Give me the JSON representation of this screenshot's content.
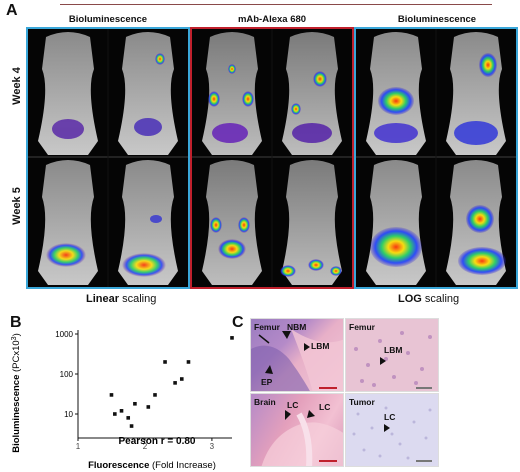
{
  "panel_a": {
    "letter": "A",
    "headers": [
      "Bioluminescence",
      "mAb-Alexa 680",
      "Bioluminescence"
    ],
    "rows": [
      "Week 4",
      "Week 5"
    ],
    "left_scaling_bold": "Linear",
    "left_scaling_rest": " scaling",
    "right_scaling_bold": "LOG",
    "right_scaling_rest": " scaling",
    "frame_colors": {
      "linear": "#3aa7d9",
      "fluor": "#c0202c",
      "log": "#3aa7d9"
    }
  },
  "panel_b": {
    "letter": "B",
    "annotation": "Pearson r = 0.80"
  },
  "panel_c": {
    "letter": "C",
    "tiles": [
      {
        "title": "Femur",
        "labels": [
          "NBM",
          "LBM",
          "EP"
        ]
      },
      {
        "title": "Femur",
        "labels": [
          "LBM"
        ]
      },
      {
        "title": "Brain",
        "labels": [
          "LC",
          "LC"
        ]
      },
      {
        "title": "Tumor",
        "labels": [
          "LC"
        ]
      }
    ]
  },
  "chart_data": {
    "type": "scatter",
    "title": "",
    "xlabel_bold": "Fluorescence",
    "xlabel_rest": " (Fold Increase)",
    "ylabel_bold": "Bioluminescence",
    "ylabel_rest": " (PCx10",
    "ylabel_sup": "3",
    "ylabel_end": ")",
    "x_ticks": [
      "1",
      "2",
      "3"
    ],
    "y_ticks": [
      "10",
      "100",
      "1000"
    ],
    "xlim": [
      1,
      3.3
    ],
    "ylim_log10": [
      0.4,
      3.1
    ],
    "points": [
      {
        "x": 1.5,
        "y": 30
      },
      {
        "x": 1.55,
        "y": 10
      },
      {
        "x": 1.65,
        "y": 12
      },
      {
        "x": 1.75,
        "y": 8
      },
      {
        "x": 1.8,
        "y": 5
      },
      {
        "x": 1.85,
        "y": 18
      },
      {
        "x": 2.05,
        "y": 15
      },
      {
        "x": 2.15,
        "y": 30
      },
      {
        "x": 2.3,
        "y": 200
      },
      {
        "x": 2.45,
        "y": 60
      },
      {
        "x": 2.55,
        "y": 75
      },
      {
        "x": 2.65,
        "y": 200
      },
      {
        "x": 3.3,
        "y": 800
      }
    ]
  }
}
